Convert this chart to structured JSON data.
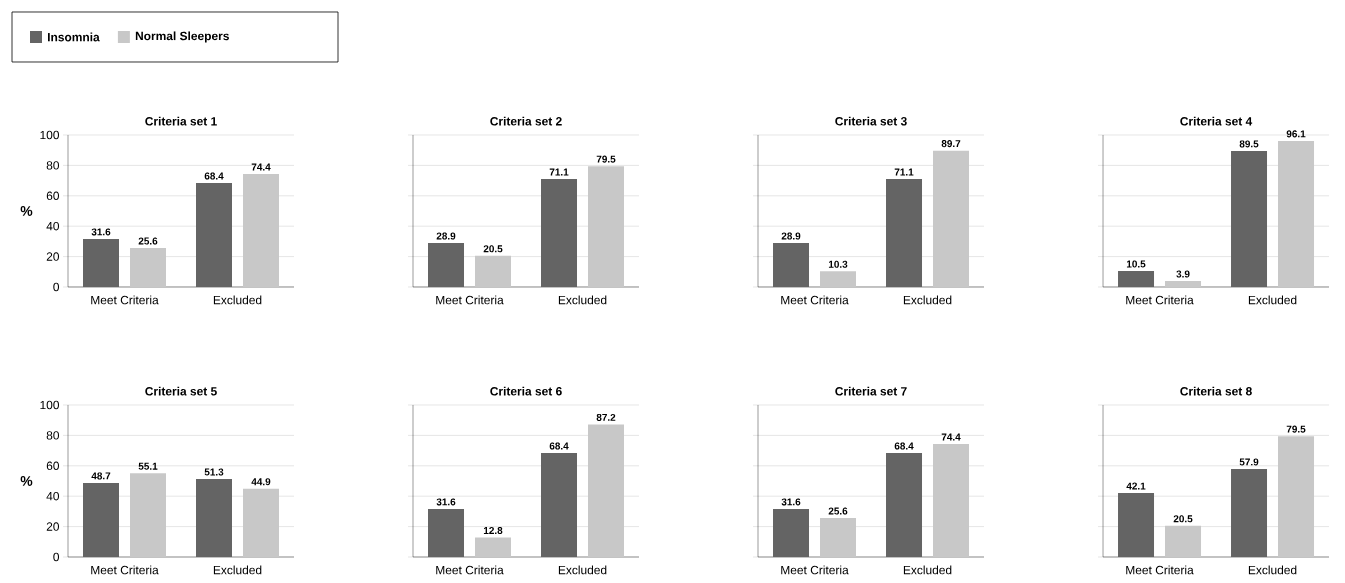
{
  "chart_data": [
    {
      "type": "bar",
      "title": "Criteria set 1",
      "ylabel": "%",
      "categories": [
        "Meet Criteria",
        "Excluded"
      ],
      "series": [
        {
          "name": "Insomnia",
          "color": "#646464",
          "values": [
            31.6,
            68.4
          ]
        },
        {
          "name": "Normal Sleepers",
          "color": "#c8c8c8",
          "values": [
            25.6,
            74.4
          ]
        }
      ],
      "ylim": [
        0,
        100
      ],
      "yticks": [
        0,
        20,
        40,
        60,
        80,
        100
      ],
      "grid": "y",
      "data_labels": true,
      "legend": "top left"
    },
    {
      "type": "bar",
      "title": "Criteria set 2",
      "categories": [
        "Meet Criteria",
        "Excluded"
      ],
      "series": [
        {
          "color": "#646464",
          "values": [
            28.9,
            71.1
          ]
        },
        {
          "color": "#c8c8c8",
          "values": [
            20.5,
            79.5
          ]
        }
      ],
      "ylim": [
        0,
        100
      ],
      "yticks": [
        0,
        20,
        40,
        60,
        80,
        100
      ],
      "grid": "y",
      "data_labels": true,
      "tick_labels": "x"
    },
    {
      "type": "bar",
      "title": "Criteria set 3",
      "categories": [
        "Meet Criteria",
        "Excluded"
      ],
      "series": [
        {
          "color": "#646464",
          "values": [
            28.9,
            71.1
          ]
        },
        {
          "color": "#c8c8c8",
          "values": [
            10.3,
            89.7
          ]
        }
      ],
      "ylim": [
        0,
        100
      ],
      "yticks": [
        0,
        20,
        40,
        60,
        80,
        100
      ],
      "grid": "y",
      "data_labels": true,
      "tick_labels": "x"
    },
    {
      "type": "bar",
      "title": "Criteria set 4",
      "categories": [
        "Meet Criteria",
        "Excluded"
      ],
      "series": [
        {
          "color": "#646464",
          "values": [
            10.5,
            89.5
          ]
        },
        {
          "color": "#c8c8c8",
          "values": [
            3.9,
            96.1
          ]
        }
      ],
      "ylim": [
        0,
        100
      ],
      "yticks": [
        0,
        20,
        40,
        60,
        80,
        100
      ],
      "grid": "y",
      "data_labels": true,
      "tick_labels": "x"
    },
    {
      "type": "bar",
      "title": "Criteria set 5",
      "ylabel": "%",
      "categories": [
        "Meet Criteria",
        "Excluded"
      ],
      "series": [
        {
          "color": "#646464",
          "values": [
            48.7,
            51.3
          ]
        },
        {
          "color": "#c8c8c8",
          "values": [
            55.1,
            44.9
          ]
        }
      ],
      "ylim": [
        0,
        100
      ],
      "yticks": [
        0,
        20,
        40,
        60,
        80,
        100
      ],
      "grid": "y",
      "data_labels": true
    },
    {
      "type": "bar",
      "title": "Criteria set 6",
      "categories": [
        "Meet Criteria",
        "Excluded"
      ],
      "series": [
        {
          "color": "#646464",
          "values": [
            31.6,
            68.4
          ]
        },
        {
          "color": "#c8c8c8",
          "values": [
            12.8,
            87.2
          ]
        }
      ],
      "ylim": [
        0,
        100
      ],
      "yticks": [
        0,
        20,
        40,
        60,
        80,
        100
      ],
      "grid": "y",
      "data_labels": true,
      "tick_labels": "x"
    },
    {
      "type": "bar",
      "title": "Criteria set 7",
      "categories": [
        "Meet Criteria",
        "Excluded"
      ],
      "series": [
        {
          "color": "#646464",
          "values": [
            31.6,
            68.4
          ]
        },
        {
          "color": "#c8c8c8",
          "values": [
            25.6,
            74.4
          ]
        }
      ],
      "ylim": [
        0,
        100
      ],
      "yticks": [
        0,
        20,
        40,
        60,
        80,
        100
      ],
      "grid": "y",
      "data_labels": true,
      "tick_labels": "x"
    },
    {
      "type": "bar",
      "title": "Criteria set 8",
      "categories": [
        "Meet Criteria",
        "Excluded"
      ],
      "series": [
        {
          "color": "#646464",
          "values": [
            42.1,
            57.9
          ]
        },
        {
          "color": "#c8c8c8",
          "values": [
            20.5,
            79.5
          ]
        }
      ],
      "ylim": [
        0,
        100
      ],
      "yticks": [
        0,
        20,
        40,
        60,
        80,
        100
      ],
      "grid": "y",
      "data_labels": true,
      "tick_labels": "x"
    }
  ]
}
